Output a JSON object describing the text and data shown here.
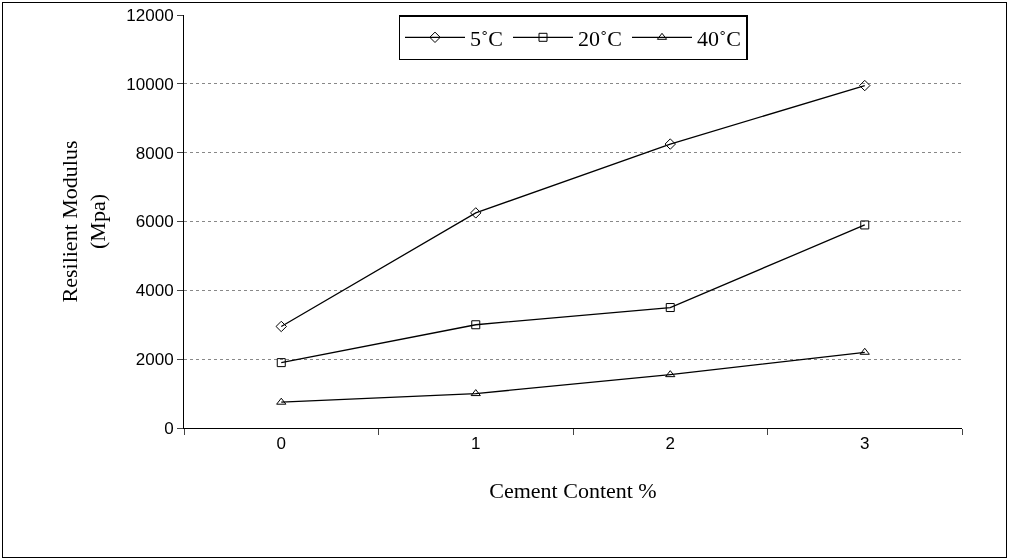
{
  "chart_data": {
    "type": "line",
    "xlabel": "Cement Content %",
    "ylabel": "Resilient Modulus (Mpa)",
    "categories": [
      "0",
      "1",
      "2",
      "3"
    ],
    "series": [
      {
        "name": "5˚C",
        "color": "#000000",
        "marker": "diamond",
        "values": [
          2950,
          6250,
          8250,
          9950
        ]
      },
      {
        "name": "20˚C",
        "color": "#000000",
        "marker": "square",
        "values": [
          1900,
          3000,
          3500,
          5900
        ]
      },
      {
        "name": "40˚C",
        "color": "#000000",
        "marker": "triangle",
        "values": [
          750,
          1000,
          1550,
          2200
        ]
      }
    ],
    "ylim": [
      0,
      12000
    ],
    "yticks": [
      0,
      2000,
      4000,
      6000,
      8000,
      10000,
      12000
    ],
    "grid": "y",
    "legend": "top",
    "line_style": "solid"
  }
}
